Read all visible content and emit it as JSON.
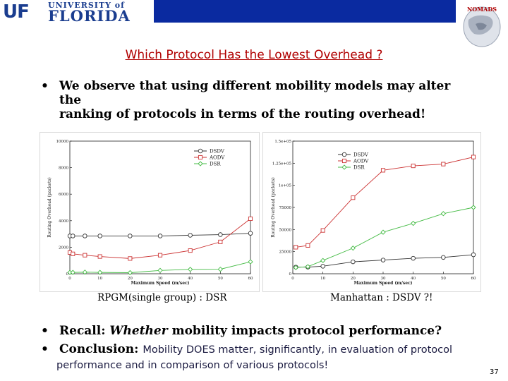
{
  "header": {
    "logo_mono": "UF",
    "logo_univ": "UNIVERSITY of",
    "logo_florida": "FLORIDA",
    "nomads_label": "NOMADS",
    "colors": {
      "bar": "#0a2aa0",
      "logo": "#1a3d8f"
    }
  },
  "title": "Which Protocol Has the Lowest Overhead ?",
  "bullets": {
    "b1_line1": "We observe that using different mobility models may alter the",
    "b1_line2": "ranking of protocols in terms of the routing overhead!",
    "b2_bold": "Recall: ",
    "b2_italic": "Whether",
    "b2_rest": " mobility impacts protocol performance?",
    "b3_bold": "Conclusion: ",
    "b3_rest_line1": "Mobility DOES matter, significantly, in evaluation of protocol",
    "b3_rest_line2": "performance and in comparison of various protocols!"
  },
  "captions": {
    "left": "RPGM(single group) : DSR",
    "right": "Manhattan : DSDV ?!"
  },
  "page_number": "37",
  "chart_data": [
    {
      "type": "line",
      "title": "",
      "xlabel": "Maximum Speed (m/sec)",
      "ylabel": "Routing Overhead (packets)",
      "xlim": [
        0,
        60
      ],
      "ylim": [
        0,
        10000
      ],
      "xticks": [
        "0",
        "10",
        "20",
        "30",
        "40",
        "50",
        "60"
      ],
      "yticks": [
        "0",
        "2000",
        "4000",
        "6000",
        "8000",
        "10000"
      ],
      "legend_position": "top-right",
      "x": [
        0,
        1,
        5,
        10,
        20,
        30,
        40,
        50,
        60
      ],
      "series": [
        {
          "name": "DSDV",
          "color": "#333333",
          "marker": "circle",
          "values": [
            2850,
            2850,
            2850,
            2850,
            2850,
            2850,
            2900,
            2950,
            3050
          ]
        },
        {
          "name": "AODV",
          "color": "#cc3333",
          "marker": "square",
          "values": [
            1600,
            1500,
            1400,
            1300,
            1150,
            1400,
            1750,
            2400,
            4150
          ]
        },
        {
          "name": "DSR",
          "color": "#44bb44",
          "marker": "diamond",
          "values": [
            100,
            100,
            120,
            100,
            80,
            250,
            330,
            340,
            900
          ]
        }
      ]
    },
    {
      "type": "line",
      "title": "",
      "xlabel": "Maximum Speed (m/sec)",
      "ylabel": "Routing Overhead (packets)",
      "xlim": [
        0,
        60
      ],
      "ylim": [
        0,
        150000
      ],
      "xticks": [
        "0",
        "10",
        "20",
        "30",
        "40",
        "50",
        "60"
      ],
      "yticks": [
        "0",
        "25000",
        "50000",
        "75000",
        "1e+05",
        "1.25e+05",
        "1.5e+05"
      ],
      "legend_position": "top-left",
      "x": [
        1,
        5,
        10,
        20,
        30,
        40,
        50,
        60
      ],
      "series": [
        {
          "name": "DSDV",
          "color": "#333333",
          "marker": "circle",
          "values": [
            7500,
            7500,
            8500,
            13500,
            15500,
            17500,
            18500,
            21500
          ]
        },
        {
          "name": "AODV",
          "color": "#cc3333",
          "marker": "square",
          "values": [
            30000,
            32000,
            49000,
            86000,
            117000,
            122000,
            124000,
            132000
          ]
        },
        {
          "name": "DSR",
          "color": "#44bb44",
          "marker": "diamond",
          "values": [
            7000,
            8000,
            15000,
            29000,
            47000,
            57000,
            68000,
            75000
          ]
        }
      ]
    }
  ]
}
